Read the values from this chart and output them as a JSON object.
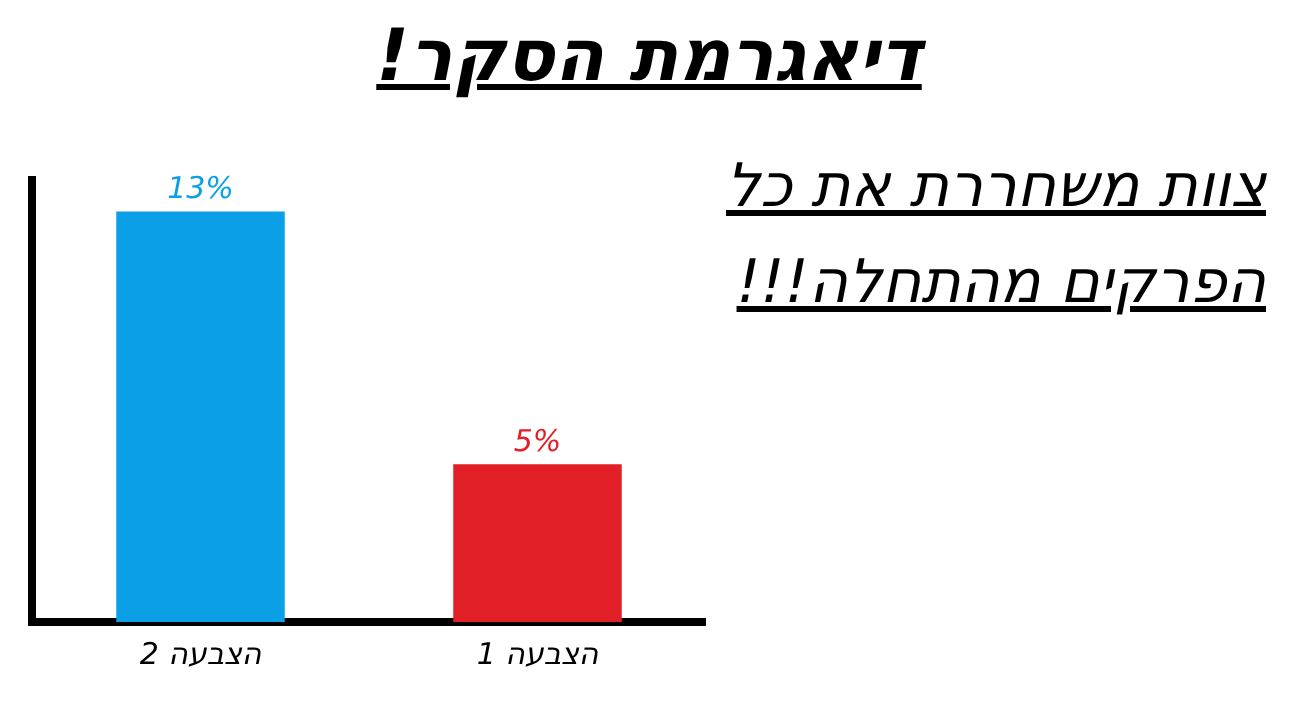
{
  "chart_data": {
    "type": "bar",
    "title": "דיאגרמת הסקר!",
    "categories": [
      "הצבעה 2",
      "הצבעה 1"
    ],
    "values": [
      13,
      5
    ],
    "colors": [
      "#0ba0e6",
      "#e21f26"
    ],
    "value_labels": [
      "13%",
      "5%"
    ],
    "grid": false,
    "legend": false,
    "annotations": [
      "צוות משחררת את כל הפרקים מהתחלה!!!"
    ]
  }
}
